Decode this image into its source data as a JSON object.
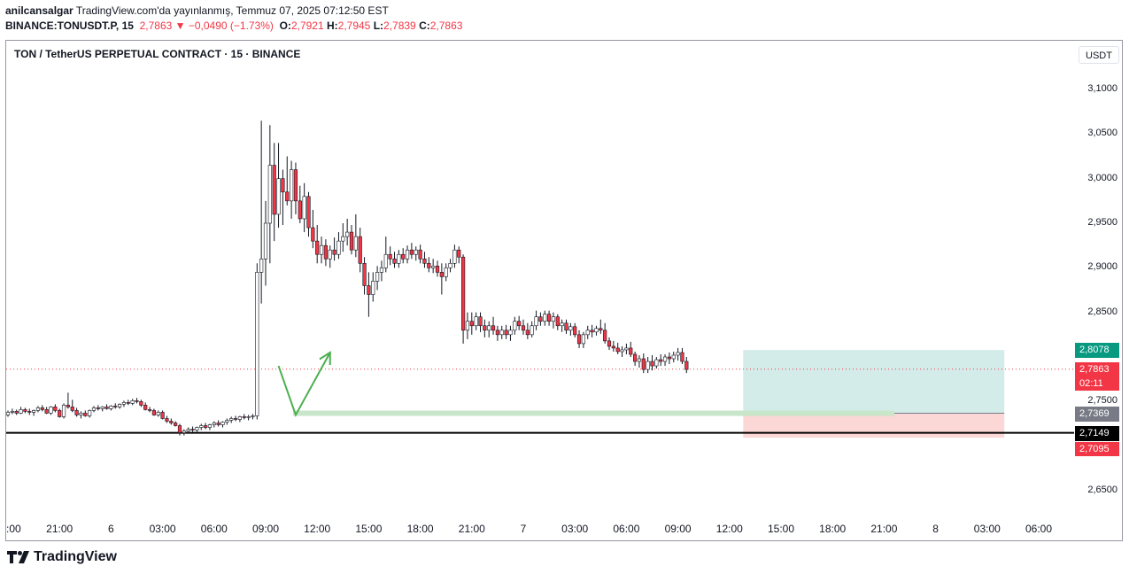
{
  "header": {
    "author": "anilcansalgar",
    "published": "TradingView.com'da yayınlanmış, Temmuz 07, 2025 07:12:50 EST",
    "symbol": "BINANCE:TONUSDT.P, 15",
    "last": "2,7863",
    "change": "▼ −0,0490 (−1.73%)",
    "o_label": "O:",
    "o": "2,7921",
    "h_label": "H:",
    "h": "2,7945",
    "l_label": "L:",
    "l": "2,7839",
    "c_label": "C:",
    "c": "2,7863"
  },
  "chart_title": "TON / TetherUS PERPETUAL CONTRACT · 15 · BINANCE",
  "currency": "USDT",
  "price_labels": {
    "target": "2,8078",
    "current": "2,7863",
    "countdown": "02:11",
    "entry": "2,7369",
    "support": "2,7149",
    "stop": "2,7095"
  },
  "colors": {
    "up": "#089981",
    "down": "#f23645",
    "target_zone": "#d3ece9",
    "stop_zone": "#fbd7d6",
    "entry_bar": "#c8e6c9",
    "arrow": "#4caf50",
    "support_line": "#000000"
  },
  "branding": "TradingView",
  "chart_data": {
    "type": "candlestick",
    "y_ticks": [
      3.1,
      3.05,
      3.0,
      2.95,
      2.9,
      2.85,
      2.75,
      2.65
    ],
    "y_tick_labels": [
      "3,1000",
      "3,0500",
      "3,0000",
      "2,9500",
      "2,9000",
      "2,8500",
      "2,7500",
      "2,6500"
    ],
    "ylim": [
      2.6,
      3.12
    ],
    "x_tick_labels": [
      ":00",
      "21:00",
      "6",
      "03:00",
      "06:00",
      "09:00",
      "12:00",
      "15:00",
      "18:00",
      "21:00",
      "7",
      "03:00",
      "06:00",
      "09:00",
      "12:00",
      "15:00",
      "18:00",
      "21:00",
      "8",
      "03:00",
      "06:00"
    ],
    "position": {
      "entry": 2.7369,
      "target": 2.8078,
      "stop": 2.7095
    },
    "support_level": 2.7149,
    "projection": [
      [
        15.75,
        2.79
      ],
      [
        16.75,
        2.735
      ],
      [
        18.75,
        2.805
      ]
    ],
    "candles": [
      [
        2.735,
        2.74,
        2.733,
        2.738
      ],
      [
        2.738,
        2.742,
        2.736,
        2.739
      ],
      [
        2.739,
        2.741,
        2.735,
        2.737
      ],
      [
        2.737,
        2.744,
        2.736,
        2.741
      ],
      [
        2.741,
        2.743,
        2.737,
        2.739
      ],
      [
        2.739,
        2.742,
        2.735,
        2.738
      ],
      [
        2.738,
        2.741,
        2.734,
        2.74
      ],
      [
        2.74,
        2.745,
        2.738,
        2.743
      ],
      [
        2.743,
        2.746,
        2.739,
        2.741
      ],
      [
        2.741,
        2.744,
        2.736,
        2.737
      ],
      [
        2.737,
        2.745,
        2.735,
        2.744
      ],
      [
        2.744,
        2.747,
        2.738,
        2.74
      ],
      [
        2.74,
        2.742,
        2.732,
        2.733
      ],
      [
        2.733,
        2.748,
        2.731,
        2.746
      ],
      [
        2.746,
        2.76,
        2.742,
        2.744
      ],
      [
        2.744,
        2.752,
        2.738,
        2.74
      ],
      [
        2.74,
        2.743,
        2.733,
        2.735
      ],
      [
        2.735,
        2.739,
        2.731,
        2.737
      ],
      [
        2.737,
        2.74,
        2.733,
        2.734
      ],
      [
        2.734,
        2.741,
        2.732,
        2.74
      ],
      [
        2.74,
        2.745,
        2.738,
        2.743
      ],
      [
        2.743,
        2.746,
        2.74,
        2.742
      ],
      [
        2.742,
        2.745,
        2.739,
        2.744
      ],
      [
        2.744,
        2.747,
        2.741,
        2.742
      ],
      [
        2.742,
        2.746,
        2.74,
        2.745
      ],
      [
        2.745,
        2.748,
        2.742,
        2.744
      ],
      [
        2.744,
        2.748,
        2.742,
        2.747
      ],
      [
        2.747,
        2.751,
        2.744,
        2.749
      ],
      [
        2.749,
        2.752,
        2.746,
        2.748
      ],
      [
        2.748,
        2.753,
        2.746,
        2.751
      ],
      [
        2.751,
        2.754,
        2.748,
        2.75
      ],
      [
        2.75,
        2.752,
        2.744,
        2.746
      ],
      [
        2.746,
        2.749,
        2.74,
        2.741
      ],
      [
        2.741,
        2.744,
        2.738,
        2.74
      ],
      [
        2.74,
        2.742,
        2.734,
        2.735
      ],
      [
        2.735,
        2.74,
        2.733,
        2.738
      ],
      [
        2.738,
        2.74,
        2.73,
        2.731
      ],
      [
        2.731,
        2.734,
        2.726,
        2.728
      ],
      [
        2.728,
        2.731,
        2.724,
        2.726
      ],
      [
        2.726,
        2.728,
        2.722,
        2.723
      ],
      [
        2.723,
        2.725,
        2.712,
        2.715
      ],
      [
        2.715,
        2.719,
        2.712,
        2.717
      ],
      [
        2.717,
        2.721,
        2.714,
        2.719
      ],
      [
        2.719,
        2.722,
        2.716,
        2.718
      ],
      [
        2.718,
        2.722,
        2.715,
        2.721
      ],
      [
        2.721,
        2.725,
        2.718,
        2.723
      ],
      [
        2.723,
        2.726,
        2.719,
        2.721
      ],
      [
        2.721,
        2.725,
        2.718,
        2.724
      ],
      [
        2.724,
        2.728,
        2.721,
        2.726
      ],
      [
        2.726,
        2.729,
        2.722,
        2.724
      ],
      [
        2.724,
        2.728,
        2.721,
        2.727
      ],
      [
        2.727,
        2.731,
        2.724,
        2.729
      ],
      [
        2.729,
        2.733,
        2.726,
        2.731
      ],
      [
        2.731,
        2.734,
        2.728,
        2.73
      ],
      [
        2.73,
        2.734,
        2.727,
        2.733
      ],
      [
        2.733,
        2.736,
        2.73,
        2.732
      ],
      [
        2.732,
        2.735,
        2.729,
        2.733
      ],
      [
        2.733,
        2.736,
        2.73,
        2.734
      ],
      [
        2.734,
        2.905,
        2.73,
        2.895
      ],
      [
        2.895,
        3.065,
        2.86,
        2.91
      ],
      [
        2.91,
        2.975,
        2.88,
        2.95
      ],
      [
        2.95,
        3.06,
        2.905,
        3.015
      ],
      [
        3.015,
        3.04,
        2.93,
        2.96
      ],
      [
        2.96,
        3.04,
        2.945,
        3.0
      ],
      [
        3.0,
        3.01,
        2.948,
        2.985
      ],
      [
        2.985,
        3.025,
        2.97,
        2.975
      ],
      [
        2.975,
        3.02,
        2.955,
        3.01
      ],
      [
        3.01,
        3.018,
        2.96,
        2.975
      ],
      [
        2.975,
        2.992,
        2.95,
        2.955
      ],
      [
        2.955,
        2.995,
        2.94,
        2.98
      ],
      [
        2.98,
        2.985,
        2.935,
        2.945
      ],
      [
        2.945,
        2.965,
        2.922,
        2.93
      ],
      [
        2.93,
        2.948,
        2.905,
        2.915
      ],
      [
        2.915,
        2.935,
        2.905,
        2.925
      ],
      [
        2.925,
        2.932,
        2.902,
        2.91
      ],
      [
        2.91,
        2.925,
        2.9,
        2.92
      ],
      [
        2.92,
        2.934,
        2.908,
        2.915
      ],
      [
        2.915,
        2.94,
        2.91,
        2.93
      ],
      [
        2.93,
        2.95,
        2.918,
        2.935
      ],
      [
        2.935,
        2.955,
        2.925,
        2.94
      ],
      [
        2.94,
        2.948,
        2.915,
        2.92
      ],
      [
        2.92,
        2.96,
        2.912,
        2.935
      ],
      [
        2.935,
        2.945,
        2.895,
        2.905
      ],
      [
        2.905,
        2.912,
        2.87,
        2.88
      ],
      [
        2.88,
        2.895,
        2.845,
        2.87
      ],
      [
        2.87,
        2.895,
        2.862,
        2.885
      ],
      [
        2.885,
        2.902,
        2.875,
        2.895
      ],
      [
        2.895,
        2.908,
        2.885,
        2.9
      ],
      [
        2.9,
        2.935,
        2.895,
        2.915
      ],
      [
        2.915,
        2.924,
        2.903,
        2.91
      ],
      [
        2.91,
        2.918,
        2.9,
        2.905
      ],
      [
        2.905,
        2.92,
        2.9,
        2.915
      ],
      [
        2.915,
        2.922,
        2.905,
        2.91
      ],
      [
        2.91,
        2.925,
        2.905,
        2.92
      ],
      [
        2.92,
        2.928,
        2.91,
        2.915
      ],
      [
        2.915,
        2.924,
        2.908,
        2.92
      ],
      [
        2.92,
        2.926,
        2.905,
        2.91
      ],
      [
        2.91,
        2.918,
        2.9,
        2.905
      ],
      [
        2.905,
        2.912,
        2.895,
        2.9
      ],
      [
        2.9,
        2.91,
        2.894,
        2.902
      ],
      [
        2.902,
        2.908,
        2.89,
        2.895
      ],
      [
        2.895,
        2.905,
        2.87,
        2.89
      ],
      [
        2.89,
        2.905,
        2.885,
        2.9
      ],
      [
        2.9,
        2.91,
        2.895,
        2.905
      ],
      [
        2.905,
        2.926,
        2.9,
        2.92
      ],
      [
        2.92,
        2.924,
        2.905,
        2.912
      ],
      [
        2.912,
        2.915,
        2.815,
        2.83
      ],
      [
        2.83,
        2.85,
        2.82,
        2.84
      ],
      [
        2.84,
        2.85,
        2.825,
        2.835
      ],
      [
        2.835,
        2.85,
        2.83,
        2.845
      ],
      [
        2.845,
        2.85,
        2.828,
        2.835
      ],
      [
        2.835,
        2.842,
        2.822,
        2.83
      ],
      [
        2.83,
        2.84,
        2.822,
        2.835
      ],
      [
        2.835,
        2.845,
        2.825,
        2.83
      ],
      [
        2.83,
        2.835,
        2.818,
        2.825
      ],
      [
        2.825,
        2.835,
        2.82,
        2.83
      ],
      [
        2.83,
        2.836,
        2.82,
        2.825
      ],
      [
        2.825,
        2.835,
        2.818,
        2.83
      ],
      [
        2.83,
        2.845,
        2.825,
        2.84
      ],
      [
        2.84,
        2.846,
        2.83,
        2.835
      ],
      [
        2.835,
        2.842,
        2.825,
        2.83
      ],
      [
        2.83,
        2.838,
        2.82,
        2.825
      ],
      [
        2.825,
        2.84,
        2.822,
        2.835
      ],
      [
        2.835,
        2.852,
        2.83,
        2.845
      ],
      [
        2.845,
        2.85,
        2.835,
        2.84
      ],
      [
        2.84,
        2.852,
        2.835,
        2.848
      ],
      [
        2.848,
        2.852,
        2.835,
        2.84
      ],
      [
        2.84,
        2.85,
        2.832,
        2.845
      ],
      [
        2.845,
        2.848,
        2.83,
        2.835
      ],
      [
        2.835,
        2.842,
        2.828,
        2.838
      ],
      [
        2.838,
        2.842,
        2.826,
        2.83
      ],
      [
        2.83,
        2.838,
        2.824,
        2.834
      ],
      [
        2.834,
        2.838,
        2.822,
        2.825
      ],
      [
        2.825,
        2.83,
        2.81,
        2.815
      ],
      [
        2.815,
        2.828,
        2.81,
        2.825
      ],
      [
        2.825,
        2.835,
        2.82,
        2.83
      ],
      [
        2.83,
        2.836,
        2.822,
        2.828
      ],
      [
        2.828,
        2.835,
        2.824,
        2.832
      ],
      [
        2.832,
        2.842,
        2.826,
        2.83
      ],
      [
        2.83,
        2.838,
        2.815,
        2.818
      ],
      [
        2.818,
        2.822,
        2.808,
        2.812
      ],
      [
        2.812,
        2.818,
        2.806,
        2.81
      ],
      [
        2.81,
        2.816,
        2.803,
        2.806
      ],
      [
        2.806,
        2.812,
        2.8,
        2.808
      ],
      [
        2.808,
        2.815,
        2.803,
        2.81
      ],
      [
        2.81,
        2.817,
        2.8,
        2.803
      ],
      [
        2.803,
        2.806,
        2.79,
        2.795
      ],
      [
        2.795,
        2.802,
        2.788,
        2.798
      ],
      [
        2.798,
        2.804,
        2.782,
        2.786
      ],
      [
        2.786,
        2.8,
        2.782,
        2.795
      ],
      [
        2.795,
        2.802,
        2.785,
        2.79
      ],
      [
        2.79,
        2.8,
        2.787,
        2.797
      ],
      [
        2.797,
        2.803,
        2.79,
        2.795
      ],
      [
        2.795,
        2.803,
        2.79,
        2.8
      ],
      [
        2.8,
        2.805,
        2.792,
        2.798
      ],
      [
        2.798,
        2.806,
        2.794,
        2.802
      ],
      [
        2.802,
        2.81,
        2.796,
        2.805
      ],
      [
        2.805,
        2.81,
        2.792,
        2.795
      ],
      [
        2.795,
        2.8,
        2.782,
        2.786
      ]
    ]
  }
}
